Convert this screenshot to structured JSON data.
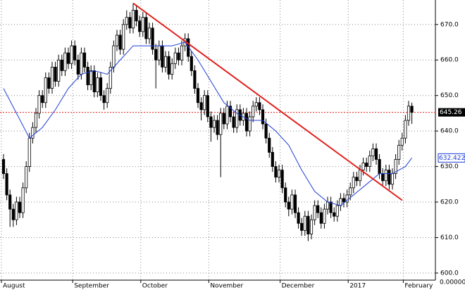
{
  "chart_data": {
    "type": "candlestick",
    "categories": [
      "August",
      null,
      null,
      null,
      null,
      null,
      null,
      null,
      null,
      null,
      null,
      null,
      null,
      null,
      null,
      null,
      null,
      null,
      null,
      null,
      null,
      null,
      "September",
      null,
      null,
      null,
      null,
      null,
      null,
      null,
      null,
      null,
      null,
      null,
      null,
      null,
      null,
      null,
      null,
      null,
      null,
      null,
      null,
      "October",
      null,
      null,
      null,
      null,
      null,
      null,
      null,
      null,
      null,
      null,
      null,
      null,
      null,
      null,
      null,
      null,
      null,
      null,
      null,
      null,
      "November",
      null,
      null,
      null,
      null,
      null,
      null,
      null,
      null,
      null,
      null,
      null,
      null,
      null,
      null,
      null,
      null,
      null,
      null,
      null,
      null,
      null,
      "December",
      null,
      null,
      null,
      null,
      null,
      null,
      null,
      null,
      null,
      null,
      null,
      null,
      null,
      null,
      null,
      null,
      null,
      null,
      null,
      null,
      "2017",
      null,
      null,
      null,
      null,
      null,
      null,
      null,
      null,
      null,
      null,
      null,
      null,
      null,
      null,
      null,
      null,
      "February",
      null,
      null
    ],
    "open": [
      632,
      628,
      622,
      618,
      615,
      620,
      617,
      624,
      630,
      638,
      641,
      645,
      650,
      648,
      655,
      652,
      658,
      654,
      660,
      657,
      662,
      659,
      664,
      660,
      656,
      662,
      658,
      653,
      657,
      651,
      655,
      650,
      648,
      652,
      658,
      664,
      667,
      663,
      670,
      672,
      669,
      674,
      671,
      668,
      672,
      666,
      669,
      663,
      660,
      664,
      658,
      661,
      656,
      659,
      662,
      660,
      664,
      666,
      661,
      657,
      652,
      648,
      646,
      650,
      644,
      641,
      643,
      639,
      645,
      642,
      647,
      644,
      641,
      646,
      643,
      645,
      640,
      644,
      647,
      648,
      646,
      642,
      638,
      634,
      630,
      627,
      629,
      624,
      620,
      618,
      622,
      617,
      614,
      612,
      616,
      611,
      615,
      619,
      617,
      614,
      618,
      620,
      617,
      616,
      619,
      621,
      620,
      622,
      624,
      627,
      626,
      629,
      631,
      630,
      633,
      635,
      632,
      628,
      626,
      629,
      625,
      628,
      632,
      636,
      638,
      643,
      647
    ],
    "high": [
      633.5,
      629.5,
      623.5,
      619.5,
      621.5,
      621.5,
      625.5,
      631.5,
      639.5,
      642.5,
      646.5,
      651.5,
      651.5,
      656.5,
      656.5,
      659.5,
      659.5,
      661.5,
      661.5,
      663.5,
      663.5,
      665.5,
      665.5,
      661.5,
      663.5,
      663.5,
      659.5,
      658.5,
      658.5,
      656.5,
      656.5,
      651.5,
      653.5,
      659.5,
      665.5,
      668.5,
      668.5,
      671.5,
      674,
      673.5,
      676,
      675.5,
      672.5,
      673.5,
      673.5,
      670.5,
      670.5,
      664.5,
      665.5,
      665.5,
      662.5,
      662.5,
      660.5,
      663.5,
      663.5,
      665.5,
      667.5,
      667.5,
      662.5,
      658.5,
      653.5,
      649.5,
      651.5,
      651.5,
      645.5,
      644.5,
      644.5,
      646.5,
      646.5,
      648.5,
      648.5,
      645.5,
      647.5,
      647.5,
      646.5,
      646.5,
      645.5,
      648.5,
      649.5,
      649.5,
      647.5,
      643.5,
      639.5,
      635.5,
      631.5,
      630.5,
      630.5,
      625.5,
      621.5,
      623.5,
      623.5,
      618.5,
      615.5,
      617.5,
      617.5,
      616.5,
      620.5,
      620.5,
      618.5,
      619.5,
      621.5,
      621.5,
      618.5,
      620.5,
      622.5,
      622.5,
      623.5,
      625.5,
      628.5,
      628.5,
      630.5,
      632.5,
      632.5,
      634.5,
      636.5,
      636.5,
      633.5,
      629.5,
      630.5,
      630.5,
      629.5,
      633.5,
      637.5,
      639.5,
      644.5,
      648.5,
      648
    ],
    "low": [
      626.5,
      620.5,
      613,
      613,
      613.5,
      615.5,
      615.5,
      622.5,
      628.5,
      636.5,
      639.5,
      643.5,
      646.5,
      646.5,
      650.5,
      650.5,
      652.5,
      652.5,
      655.5,
      655.5,
      657.5,
      657.5,
      658.5,
      654.5,
      654.5,
      656.5,
      651.5,
      651.5,
      649.5,
      649.5,
      648.5,
      646,
      646.5,
      650.5,
      656.5,
      662.5,
      661.5,
      661.5,
      668.5,
      667.5,
      667.5,
      669.5,
      666.5,
      666.5,
      664.5,
      664.5,
      661.5,
      652,
      658.5,
      656.5,
      656.5,
      654.5,
      654.5,
      657.5,
      658.5,
      658.5,
      662.5,
      659.5,
      655.5,
      650.5,
      646.5,
      643,
      644.5,
      642.5,
      637,
      639.5,
      637.5,
      627,
      640.5,
      640.5,
      642.5,
      639.5,
      639.5,
      641.5,
      641.5,
      638.5,
      638.5,
      642.5,
      645.5,
      644.5,
      640.5,
      636.5,
      632.5,
      628.5,
      625.5,
      625.5,
      622.5,
      618.5,
      616,
      616.5,
      615.5,
      612.5,
      610.5,
      610.5,
      609,
      609.5,
      613.5,
      615.5,
      612.5,
      612.5,
      616.5,
      615.5,
      614.5,
      614.5,
      617.5,
      618.5,
      618.5,
      620.5,
      622.5,
      624.5,
      624.5,
      627.5,
      628.5,
      628.5,
      631.5,
      630.5,
      626.5,
      624.5,
      624.5,
      623.5,
      623.5,
      626.5,
      630.5,
      634.5,
      636.5,
      641.5,
      642
    ],
    "close": [
      628,
      622,
      618,
      615,
      620,
      617,
      624,
      630,
      638,
      641,
      645,
      650,
      648,
      655,
      652,
      658,
      654,
      660,
      657,
      662,
      659,
      664,
      660,
      656,
      662,
      658,
      653,
      657,
      651,
      655,
      650,
      648,
      652,
      658,
      664,
      667,
      663,
      670,
      672,
      669,
      674,
      671,
      668,
      672,
      666,
      669,
      663,
      660,
      664,
      658,
      661,
      656,
      659,
      662,
      660,
      664,
      666,
      661,
      657,
      652,
      648,
      646,
      650,
      644,
      641,
      643,
      639,
      645,
      642,
      647,
      644,
      641,
      646,
      643,
      645,
      640,
      644,
      647,
      648,
      646,
      642,
      638,
      634,
      630,
      627,
      629,
      624,
      620,
      618,
      622,
      617,
      614,
      612,
      616,
      611,
      615,
      619,
      617,
      614,
      618,
      620,
      617,
      616,
      619,
      621,
      620,
      622,
      624,
      627,
      626,
      629,
      631,
      630,
      633,
      635,
      632,
      628,
      626,
      629,
      625,
      628,
      632,
      636,
      638,
      643,
      647,
      645.26
    ],
    "ma_x": [
      0,
      4,
      8,
      12,
      16,
      20,
      24,
      28,
      32,
      36,
      40,
      44,
      48,
      52,
      56,
      60,
      64,
      68,
      72,
      76,
      80,
      84,
      88,
      92,
      96,
      100,
      104,
      108,
      112,
      116,
      120,
      124,
      126
    ],
    "ma_values": [
      652,
      645,
      638,
      641,
      646,
      652,
      656,
      657,
      656,
      660,
      664,
      664,
      664,
      664,
      665,
      660,
      654,
      648,
      645,
      643,
      643,
      640,
      636,
      629,
      623,
      620,
      619,
      622,
      625,
      628,
      628,
      630,
      632.422
    ],
    "ma_color": "#1f3fd6",
    "trend_x": [
      40,
      123
    ],
    "trend_values": [
      676,
      620.5
    ],
    "trend_color": "#e0201c",
    "last_price": 645.26,
    "last_price_color": "#e0201c",
    "ma_last": 632.422,
    "ylim": [
      598.0,
      676.9
    ],
    "yticks": [
      {
        "value": 600,
        "label": "600.0"
      },
      {
        "value": 610,
        "label": "610.0"
      },
      {
        "value": 620,
        "label": "620.0"
      },
      {
        "value": 630,
        "label": "630.0"
      },
      {
        "value": 640,
        "label": "640.0"
      },
      {
        "value": 650,
        "label": "650.0"
      },
      {
        "value": 660,
        "label": "660.0"
      },
      {
        "value": 670,
        "label": "670.0"
      }
    ],
    "bottom_axis_label": "0.00000",
    "grid": true
  }
}
